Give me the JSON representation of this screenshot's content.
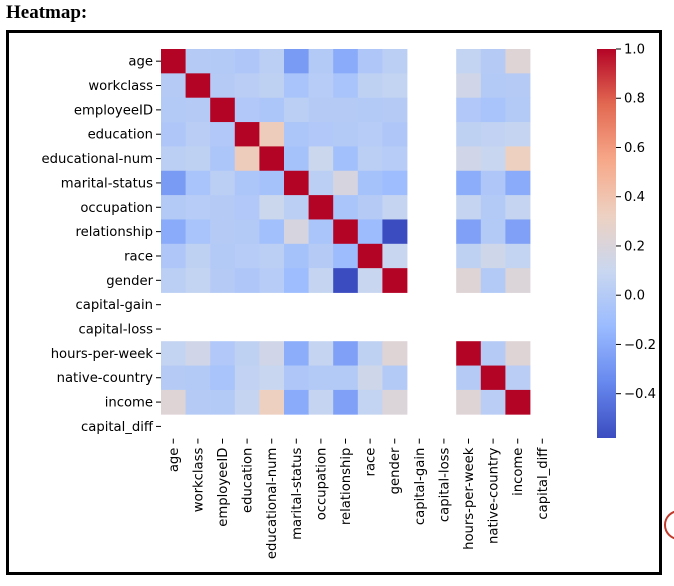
{
  "page": {
    "heading": "Heatmap:"
  },
  "chart_data": {
    "type": "heatmap",
    "labels": [
      "age",
      "workclass",
      "employeeID",
      "education",
      "educational-num",
      "marital-status",
      "occupation",
      "relationship",
      "race",
      "gender",
      "capital-gain",
      "capital-loss",
      "hours-per-week",
      "native-country",
      "income",
      "capital_diff"
    ],
    "matrix": [
      [
        1.0,
        0.0,
        -0.01,
        -0.03,
        0.03,
        -0.27,
        -0.01,
        -0.2,
        -0.03,
        0.03,
        null,
        null,
        0.07,
        -0.0,
        0.23,
        null
      ],
      [
        0.0,
        1.0,
        -0.0,
        0.02,
        0.05,
        -0.06,
        0.01,
        -0.06,
        0.05,
        0.07,
        null,
        null,
        0.14,
        -0.01,
        0.0,
        null
      ],
      [
        -0.01,
        -0.0,
        1.0,
        -0.02,
        -0.04,
        0.03,
        -0.0,
        0.0,
        -0.01,
        0.0,
        null,
        null,
        -0.02,
        -0.06,
        -0.01,
        null
      ],
      [
        -0.03,
        0.02,
        -0.02,
        1.0,
        0.35,
        -0.04,
        -0.02,
        -0.01,
        0.01,
        -0.03,
        null,
        null,
        0.05,
        0.06,
        0.08,
        null
      ],
      [
        0.03,
        0.05,
        -0.04,
        0.35,
        1.0,
        -0.07,
        0.11,
        -0.09,
        0.03,
        0.01,
        null,
        null,
        0.14,
        0.09,
        0.33,
        null
      ],
      [
        -0.27,
        -0.06,
        0.03,
        -0.04,
        -0.07,
        1.0,
        0.03,
        0.18,
        -0.07,
        -0.11,
        null,
        null,
        -0.19,
        -0.03,
        -0.2,
        null
      ],
      [
        -0.01,
        0.01,
        -0.0,
        -0.02,
        0.11,
        0.03,
        1.0,
        -0.05,
        0.0,
        0.08,
        null,
        null,
        0.08,
        -0.01,
        0.08,
        null
      ],
      [
        -0.2,
        -0.06,
        0.0,
        -0.01,
        -0.09,
        0.18,
        -0.05,
        1.0,
        -0.12,
        -0.58,
        null,
        null,
        -0.25,
        -0.01,
        -0.25,
        null
      ],
      [
        -0.03,
        0.05,
        -0.01,
        0.01,
        0.03,
        -0.07,
        0.0,
        -0.12,
        1.0,
        0.09,
        null,
        null,
        0.05,
        0.13,
        0.07,
        null
      ],
      [
        0.03,
        0.07,
        0.0,
        -0.03,
        0.01,
        -0.11,
        0.08,
        -0.58,
        0.09,
        1.0,
        null,
        null,
        0.23,
        -0.01,
        0.21,
        null
      ],
      [
        null,
        null,
        null,
        null,
        null,
        null,
        null,
        null,
        null,
        null,
        null,
        null,
        null,
        null,
        null,
        null
      ],
      [
        null,
        null,
        null,
        null,
        null,
        null,
        null,
        null,
        null,
        null,
        null,
        null,
        null,
        null,
        null,
        null
      ],
      [
        0.07,
        0.14,
        -0.02,
        0.05,
        0.14,
        -0.19,
        0.08,
        -0.25,
        0.05,
        0.23,
        null,
        null,
        1.0,
        0.0,
        0.23,
        null
      ],
      [
        -0.0,
        -0.01,
        -0.06,
        0.06,
        0.09,
        -0.03,
        -0.01,
        -0.01,
        0.13,
        -0.01,
        null,
        null,
        0.0,
        1.0,
        0.02,
        null
      ],
      [
        0.23,
        0.0,
        -0.01,
        0.08,
        0.33,
        -0.2,
        0.08,
        -0.25,
        0.07,
        0.21,
        null,
        null,
        0.23,
        0.02,
        1.0,
        null
      ],
      [
        null,
        null,
        null,
        null,
        null,
        null,
        null,
        null,
        null,
        null,
        null,
        null,
        null,
        null,
        null,
        null
      ]
    ],
    "colorbar": {
      "min": -0.58,
      "max": 1.0,
      "ticks": [
        1.0,
        0.8,
        0.6,
        0.4,
        0.2,
        0.0,
        -0.2,
        -0.4
      ],
      "tick_labels": [
        "1.0",
        "0.8",
        "0.6",
        "0.4",
        "0.2",
        "0.0",
        "−0.2",
        "−0.4"
      ]
    },
    "colormap": "coolwarm",
    "colormap_stops": [
      "#3b4cc0",
      "#6788ee",
      "#9abbff",
      "#c9d7f0",
      "#edd1c2",
      "#f7a889",
      "#e26952",
      "#b40426"
    ]
  }
}
